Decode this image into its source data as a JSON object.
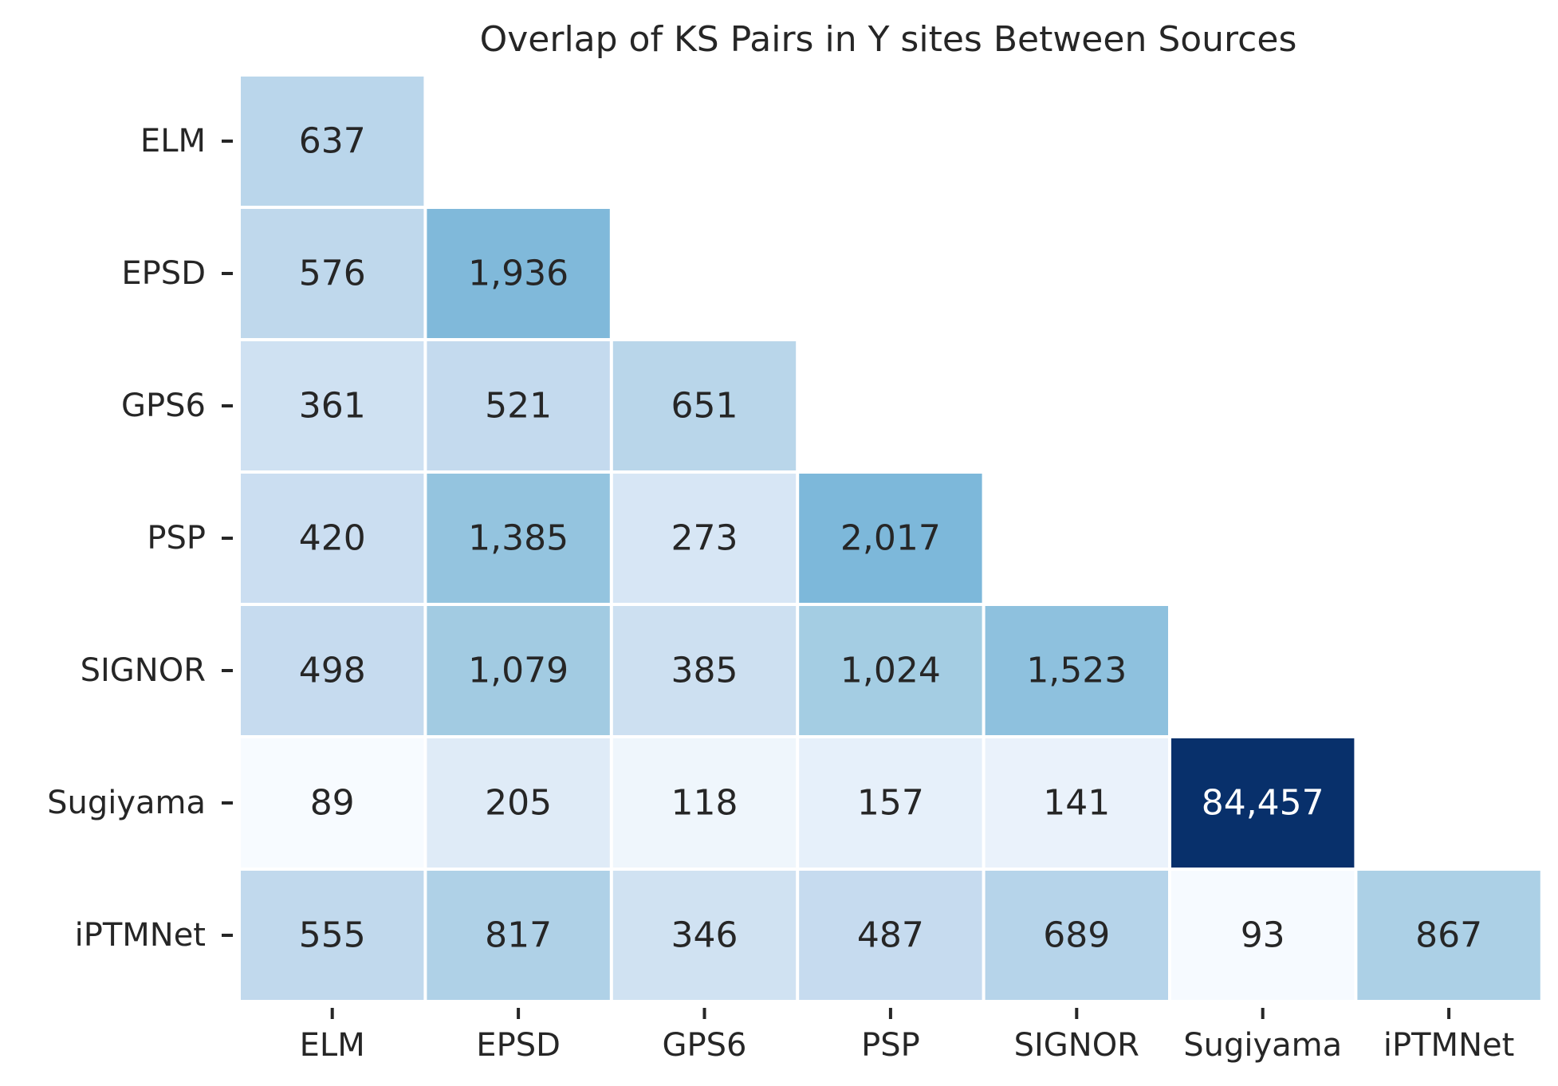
{
  "chart_data": {
    "type": "heatmap",
    "title": "Overlap of KS Pairs in Y sites Between Sources",
    "xlabel": "",
    "ylabel": "",
    "x_categories": [
      "ELM",
      "EPSD",
      "GPS6",
      "PSP",
      "SIGNOR",
      "Sugiyama",
      "iPTMNet"
    ],
    "y_categories": [
      "ELM",
      "EPSD",
      "GPS6",
      "PSP",
      "SIGNOR",
      "Sugiyama",
      "iPTMNet"
    ],
    "matrix": [
      [
        637,
        null,
        null,
        null,
        null,
        null,
        null
      ],
      [
        576,
        1936,
        null,
        null,
        null,
        null,
        null
      ],
      [
        361,
        521,
        651,
        null,
        null,
        null,
        null
      ],
      [
        420,
        1385,
        273,
        2017,
        null,
        null,
        null
      ],
      [
        498,
        1079,
        385,
        1024,
        1523,
        null,
        null
      ],
      [
        89,
        205,
        118,
        157,
        141,
        84457,
        null
      ],
      [
        555,
        817,
        346,
        487,
        689,
        93,
        867
      ]
    ],
    "cell_labels": [
      [
        "637",
        "",
        "",
        "",
        "",
        "",
        ""
      ],
      [
        "576",
        "1,936",
        "",
        "",
        "",
        "",
        ""
      ],
      [
        "361",
        "521",
        "651",
        "",
        "",
        "",
        ""
      ],
      [
        "420",
        "1,385",
        "273",
        "2,017",
        "",
        "",
        ""
      ],
      [
        "498",
        "1,079",
        "385",
        "1,024",
        "1,523",
        "",
        ""
      ],
      [
        "89",
        "205",
        "118",
        "157",
        "141",
        "84,457",
        ""
      ],
      [
        "555",
        "817",
        "346",
        "487",
        "689",
        "93",
        "867"
      ]
    ],
    "mask": "upper-triangle",
    "colormap": "Blues",
    "color_scale": "log",
    "colorbar": false,
    "grid": false,
    "colors": {
      "low": "#f7fbff",
      "high": "#08306b",
      "cell_border": "#ffffff",
      "text_dark": "#262626",
      "text_light": "#ffffff",
      "tick": "#262626"
    }
  }
}
